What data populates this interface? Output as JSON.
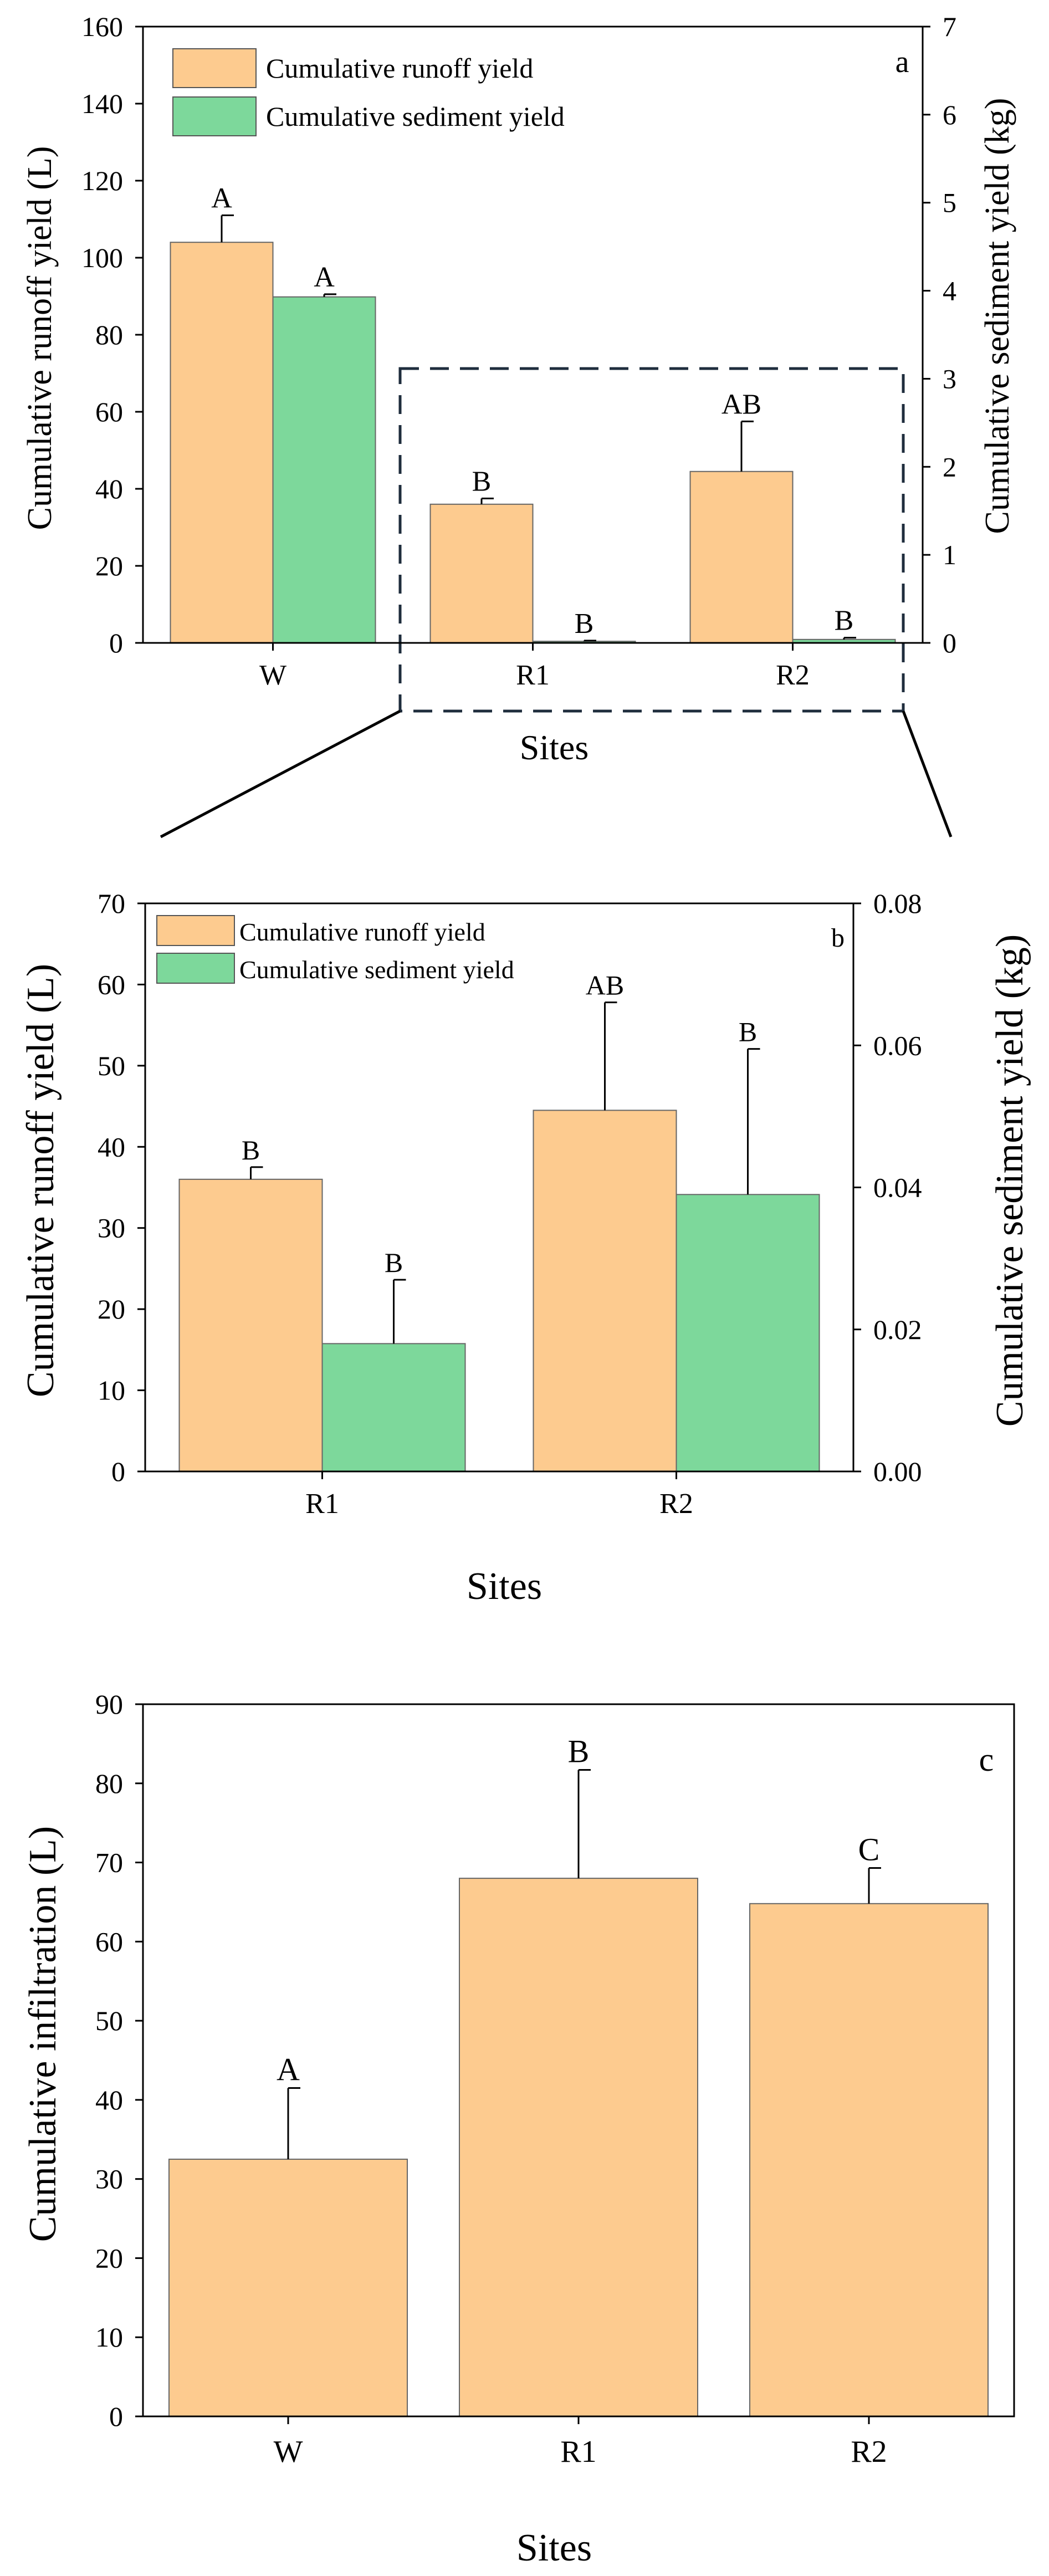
{
  "chart_data": [
    {
      "id": "a",
      "type": "bar",
      "panel_label": "a",
      "categories": [
        "W",
        "R1",
        "R2"
      ],
      "xlabel": "Sites",
      "ylabel_left": "Cumulative runoff yield (L)",
      "ylabel_right": "Cumulative sediment yield (kg)",
      "ylim_left": [
        0,
        160
      ],
      "ylim_right": [
        0,
        7
      ],
      "yticks_left": [
        "0",
        "20",
        "40",
        "60",
        "80",
        "100",
        "120",
        "140",
        "160"
      ],
      "yticks_right": [
        "0",
        "1",
        "2",
        "3",
        "4",
        "5",
        "6",
        "7"
      ],
      "series": [
        {
          "name": "Cumulative runoff yield",
          "axis": "left",
          "color": "#fdcb8f",
          "values": [
            104,
            36,
            44.5
          ],
          "errors": [
            7,
            1.5,
            13
          ],
          "letters": [
            "A",
            "B",
            "AB"
          ]
        },
        {
          "name": "Cumulative sediment yield",
          "axis": "right",
          "color": "#7dd89b",
          "values": [
            3.93,
            0.018,
            0.039
          ],
          "errors": [
            0.03,
            0.008,
            0.02
          ],
          "letters": [
            "A",
            "B",
            "B"
          ]
        }
      ]
    },
    {
      "id": "b",
      "type": "bar",
      "panel_label": "b",
      "categories": [
        "R1",
        "R2"
      ],
      "xlabel": "Sites",
      "ylabel_left": "Cumulative runoff yield (L)",
      "ylabel_right": "Cumulative sediment yield (kg)",
      "ylim_left": [
        0,
        70
      ],
      "ylim_right": [
        0,
        0.08
      ],
      "yticks_left": [
        "0",
        "10",
        "20",
        "30",
        "40",
        "50",
        "60",
        "70"
      ],
      "yticks_right": [
        "0.00",
        "0.02",
        "0.04",
        "0.06",
        "0.08"
      ],
      "series": [
        {
          "name": "Cumulative runoff yield",
          "axis": "left",
          "color": "#fdcb8f",
          "values": [
            36,
            44.5
          ],
          "errors": [
            1.5,
            13.3
          ],
          "letters": [
            "B",
            "AB"
          ]
        },
        {
          "name": "Cumulative sediment yield",
          "axis": "right",
          "color": "#7dd89b",
          "values": [
            0.018,
            0.039
          ],
          "errors": [
            0.009,
            0.0205
          ],
          "letters": [
            "B",
            "B"
          ]
        }
      ]
    },
    {
      "id": "c",
      "type": "bar",
      "panel_label": "c",
      "categories": [
        "W",
        "R1",
        "R2"
      ],
      "xlabel": "Sites",
      "ylabel_left": "Cumulative infiltration (L)",
      "ylim_left": [
        0,
        90
      ],
      "yticks_left": [
        "0",
        "10",
        "20",
        "30",
        "40",
        "50",
        "60",
        "70",
        "80",
        "90"
      ],
      "series": [
        {
          "name": "Cumulative infiltration",
          "axis": "left",
          "color": "#fdcb8f",
          "values": [
            32.5,
            68,
            64.8
          ],
          "errors": [
            9,
            13.7,
            4.5
          ],
          "letters": [
            "A",
            "B",
            "C"
          ]
        }
      ]
    }
  ]
}
